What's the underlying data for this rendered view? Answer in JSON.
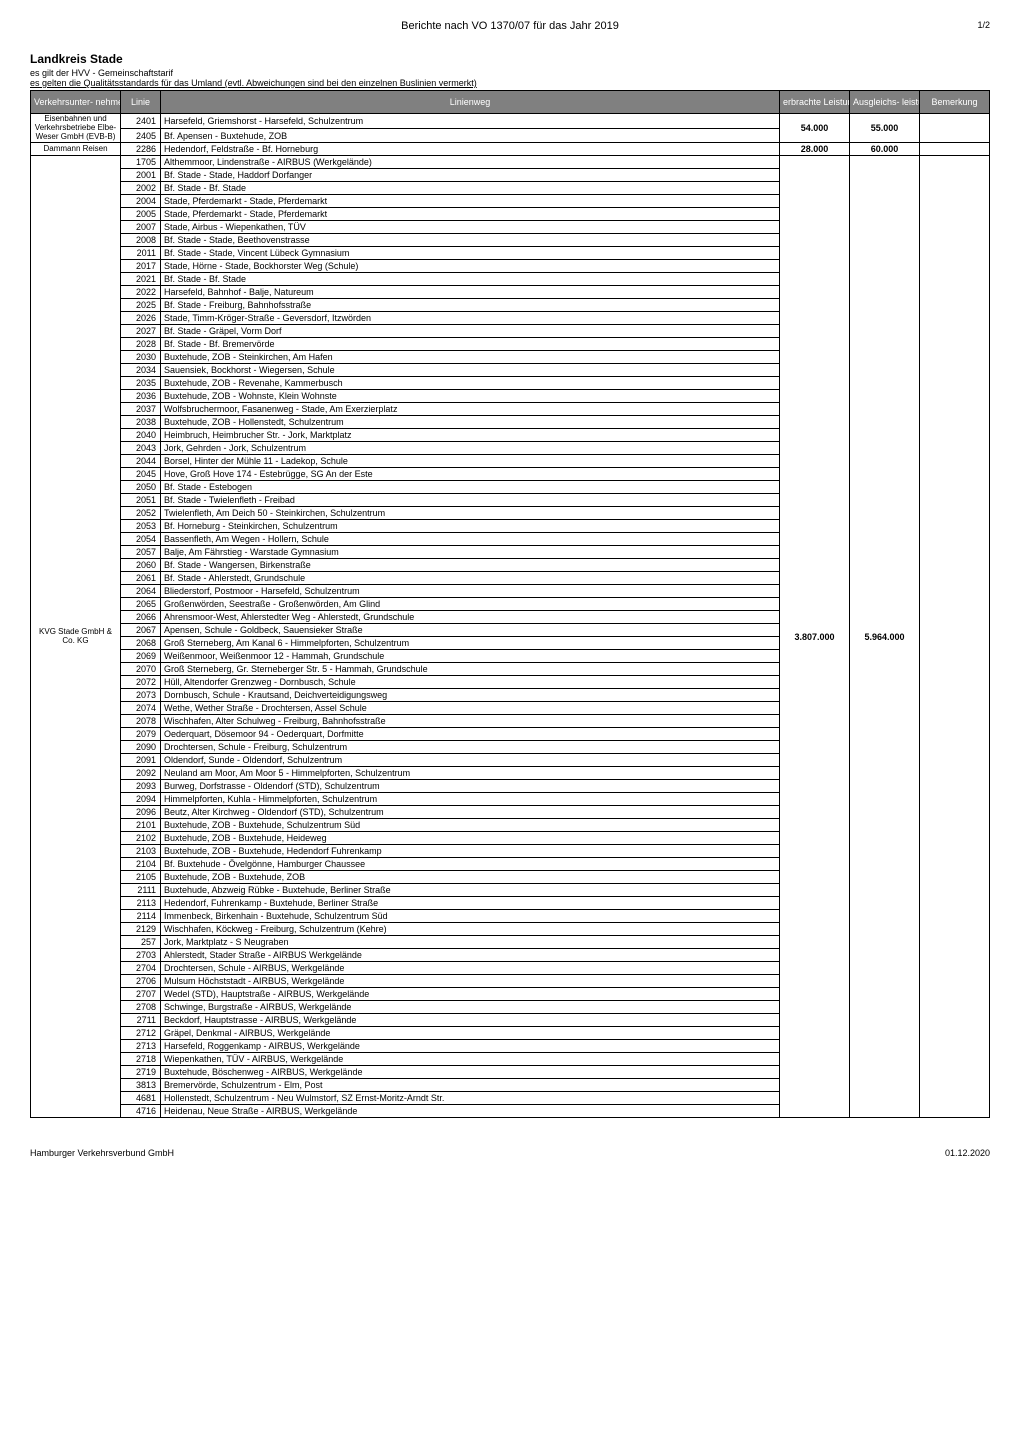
{
  "page": {
    "report_title": "Berichte nach VO 1370/07 für das Jahr 2019",
    "page_indicator": "1/2",
    "region": "Landkreis Stade",
    "tariff_line": "es gilt der HVV - Gemeinschaftstarif",
    "standards_line": "es gelten die Qualitätsstandards für das Umland (evtl. Abweichungen sind bei den einzelnen Buslinien vermerkt)",
    "footer_left": "Hamburger Verkehrsverbund GmbH",
    "footer_right": "01.12.2020"
  },
  "columns": {
    "operator": "Verkehrsunter-\nnehmen\n(ausgewählter\nBetreiber)",
    "line": "Linie",
    "route": "Linienweg",
    "erbrachte": "erbrachte\nLeistung\n(Fplkm)",
    "ausgleich": "Ausgleichs-\nleistungen\nin €/a",
    "bemerkung": "Bemerkung"
  },
  "groups": [
    {
      "operator": "Eisenbahnen und Verkehrsbetriebe Elbe-Weser GmbH (EVB-B)",
      "erbrachte": "54.000",
      "ausgleich": "55.000",
      "rows": [
        {
          "line": "2401",
          "route": "Harsefeld, Griemshorst - Harsefeld, Schulzentrum"
        },
        {
          "line": "2405",
          "route": "Bf. Apensen - Buxtehude, ZOB"
        }
      ]
    },
    {
      "operator": "Dammann Reisen",
      "erbrachte": "28.000",
      "ausgleich": "60.000",
      "rows": [
        {
          "line": "2286",
          "route": "Hedendorf, Feldstraße - Bf. Horneburg"
        }
      ]
    },
    {
      "operator": "KVG Stade GmbH & Co. KG",
      "erbrachte": "3.807.000",
      "ausgleich": "5.964.000",
      "rows": [
        {
          "line": "1705",
          "route": "Althemmoor, Lindenstraße - AIRBUS (Werkgelände)"
        },
        {
          "line": "2001",
          "route": "Bf. Stade - Stade, Haddorf Dorfanger"
        },
        {
          "line": "2002",
          "route": "Bf. Stade - Bf. Stade"
        },
        {
          "line": "2004",
          "route": "Stade, Pferdemarkt - Stade, Pferdemarkt"
        },
        {
          "line": "2005",
          "route": "Stade, Pferdemarkt - Stade, Pferdemarkt"
        },
        {
          "line": "2007",
          "route": "Stade, Airbus - Wiepenkathen, TÜV"
        },
        {
          "line": "2008",
          "route": "Bf. Stade - Stade, Beethovenstrasse"
        },
        {
          "line": "2011",
          "route": "Bf. Stade - Stade, Vincent Lübeck Gymnasium"
        },
        {
          "line": "2017",
          "route": "Stade, Hörne - Stade, Bockhorster Weg (Schule)"
        },
        {
          "line": "2021",
          "route": "Bf. Stade - Bf. Stade"
        },
        {
          "line": "2022",
          "route": "Harsefeld, Bahnhof - Balje, Natureum"
        },
        {
          "line": "2025",
          "route": "Bf. Stade - Freiburg, Bahnhofsstraße"
        },
        {
          "line": "2026",
          "route": "Stade, Timm-Kröger-Straße - Geversdorf, Itzwörden"
        },
        {
          "line": "2027",
          "route": "Bf. Stade - Gräpel, Vorm Dorf"
        },
        {
          "line": "2028",
          "route": "Bf. Stade - Bf. Bremervörde"
        },
        {
          "line": "2030",
          "route": "Buxtehude, ZOB - Steinkirchen, Am Hafen"
        },
        {
          "line": "2034",
          "route": "Sauensiek, Bockhorst - Wiegersen, Schule"
        },
        {
          "line": "2035",
          "route": "Buxtehude, ZOB - Revenahe, Kammerbusch"
        },
        {
          "line": "2036",
          "route": "Buxtehude, ZOB - Wohnste, Klein Wohnste"
        },
        {
          "line": "2037",
          "route": "Wolfsbruchermoor, Fasanenweg - Stade, Am Exerzierplatz"
        },
        {
          "line": "2038",
          "route": "Buxtehude, ZOB - Hollenstedt, Schulzentrum"
        },
        {
          "line": "2040",
          "route": "Heimbruch, Heimbrucher Str. - Jork, Marktplatz"
        },
        {
          "line": "2043",
          "route": "Jork, Gehrden - Jork, Schulzentrum"
        },
        {
          "line": "2044",
          "route": "Borsel, Hinter der Mühle 11 - Ladekop, Schule"
        },
        {
          "line": "2045",
          "route": "Hove, Groß Hove 174 - Estebrügge, SG An der Este"
        },
        {
          "line": "2050",
          "route": "Bf. Stade - Estebogen"
        },
        {
          "line": "2051",
          "route": "Bf. Stade - Twielenfleth - Freibad"
        },
        {
          "line": "2052",
          "route": "Twielenfleth, Am Deich 50 - Steinkirchen, Schulzentrum"
        },
        {
          "line": "2053",
          "route": "Bf. Horneburg - Steinkirchen, Schulzentrum"
        },
        {
          "line": "2054",
          "route": "Bassenfleth, Am Wegen - Hollern, Schule"
        },
        {
          "line": "2057",
          "route": "Balje, Am Fährstieg - Warstade Gymnasium"
        },
        {
          "line": "2060",
          "route": "Bf. Stade - Wangersen, Birkenstraße"
        },
        {
          "line": "2061",
          "route": "Bf. Stade - Ahlerstedt, Grundschule"
        },
        {
          "line": "2064",
          "route": "Bliederstorf, Postmoor - Harsefeld, Schulzentrum"
        },
        {
          "line": "2065",
          "route": "Großenwörden, Seestraße - Großenwörden, Am Glind"
        },
        {
          "line": "2066",
          "route": "Ahrensmoor-West, Ahlerstedter Weg - Ahlerstedt, Grundschule"
        },
        {
          "line": "2067",
          "route": "Apensen, Schule - Goldbeck, Sauensieker Straße"
        },
        {
          "line": "2068",
          "route": "Groß Sterneberg, Am Kanal 6 - Himmelpforten, Schulzentrum"
        },
        {
          "line": "2069",
          "route": "Weißenmoor, Weißenmoor 12 - Hammah, Grundschule"
        },
        {
          "line": "2070",
          "route": "Groß Sterneberg, Gr. Sterneberger Str. 5 - Hammah, Grundschule"
        },
        {
          "line": "2072",
          "route": "Hüll, Altendorfer Grenzweg - Dornbusch, Schule"
        },
        {
          "line": "2073",
          "route": "Dornbusch, Schule - Krautsand, Deichverteidigungsweg"
        },
        {
          "line": "2074",
          "route": "Wethe, Wether Straße - Drochtersen, Assel Schule"
        },
        {
          "line": "2078",
          "route": "Wischhafen, Alter Schulweg - Freiburg, Bahnhofsstraße"
        },
        {
          "line": "2079",
          "route": "Oederquart, Dösemoor 94 - Oederquart, Dorfmitte"
        },
        {
          "line": "2090",
          "route": "Drochtersen, Schule - Freiburg, Schulzentrum"
        },
        {
          "line": "2091",
          "route": "Oldendorf, Sunde - Oldendorf, Schulzentrum"
        },
        {
          "line": "2092",
          "route": "Neuland am Moor, Am Moor 5 - Himmelpforten, Schulzentrum"
        },
        {
          "line": "2093",
          "route": "Burweg, Dorfstrasse - Oldendorf (STD), Schulzentrum"
        },
        {
          "line": "2094",
          "route": "Himmelpforten, Kuhla - Himmelpforten, Schulzentrum"
        },
        {
          "line": "2096",
          "route": "Beutz, Alter Kirchweg - Oldendorf (STD), Schulzentrum"
        },
        {
          "line": "2101",
          "route": "Buxtehude, ZOB - Buxtehude, Schulzentrum Süd"
        },
        {
          "line": "2102",
          "route": "Buxtehude, ZOB - Buxtehude, Heideweg"
        },
        {
          "line": "2103",
          "route": "Buxtehude, ZOB - Buxtehude, Hedendorf Fuhrenkamp"
        },
        {
          "line": "2104",
          "route": "Bf. Buxtehude - Övelgönne, Hamburger Chaussee"
        },
        {
          "line": "2105",
          "route": "Buxtehude, ZOB - Buxtehude, ZOB"
        },
        {
          "line": "2111",
          "route": "Buxtehude, Abzweig Rübke - Buxtehude, Berliner Straße"
        },
        {
          "line": "2113",
          "route": "Hedendorf, Fuhrenkamp - Buxtehude, Berliner Straße"
        },
        {
          "line": "2114",
          "route": "Immenbeck, Birkenhain - Buxtehude, Schulzentrum Süd"
        },
        {
          "line": "2129",
          "route": "Wischhafen, Köckweg - Freiburg, Schulzentrum (Kehre)"
        },
        {
          "line": "257",
          "route": "Jork, Marktplatz - S Neugraben"
        },
        {
          "line": "2703",
          "route": "Ahlerstedt, Stader Straße - AIRBUS Werkgelände"
        },
        {
          "line": "2704",
          "route": "Drochtersen, Schule - AIRBUS, Werkgelände"
        },
        {
          "line": "2706",
          "route": "Mulsum Höchststadt - AIRBUS, Werkgelände"
        },
        {
          "line": "2707",
          "route": "Wedel (STD), Hauptstraße - AIRBUS, Werkgelände"
        },
        {
          "line": "2708",
          "route": "Schwinge, Burgstraße - AIRBUS, Werkgelände"
        },
        {
          "line": "2711",
          "route": "Beckdorf, Hauptstrasse - AIRBUS, Werkgelände"
        },
        {
          "line": "2712",
          "route": "Gräpel, Denkmal - AIRBUS, Werkgelände"
        },
        {
          "line": "2713",
          "route": "Harsefeld, Roggenkamp - AIRBUS, Werkgelände"
        },
        {
          "line": "2718",
          "route": "Wiepenkathen, TÜV - AIRBUS, Werkgelände"
        },
        {
          "line": "2719",
          "route": "Buxtehude, Böschenweg - AIRBUS, Werkgelände"
        },
        {
          "line": "3813",
          "route": "Bremervörde, Schulzentrum - Elm, Post"
        },
        {
          "line": "4681",
          "route": "Hollenstedt, Schulzentrum - Neu Wulmstorf, SZ Ernst-Moritz-Arndt Str."
        },
        {
          "line": "4716",
          "route": "Heidenau, Neue Straße - AIRBUS, Werkgelände"
        }
      ]
    }
  ]
}
